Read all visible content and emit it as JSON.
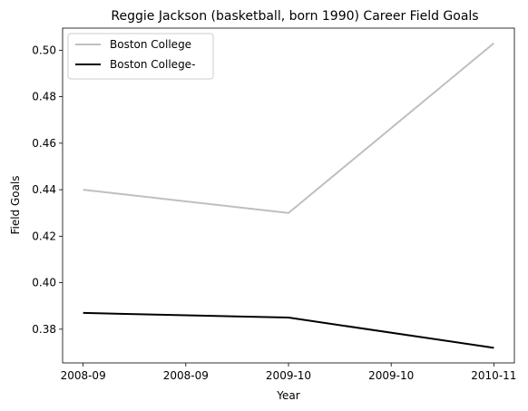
{
  "chart_data": {
    "type": "line",
    "title": "Reggie Jackson (basketball, born 1990) Career Field Goals",
    "xlabel": "Year",
    "ylabel": "Field Goals",
    "x": [
      0,
      1,
      2
    ],
    "xticks": [
      {
        "value": 0,
        "label": "2008-09"
      },
      {
        "value": 0.5,
        "label": "2008-09"
      },
      {
        "value": 1,
        "label": "2009-10"
      },
      {
        "value": 1.5,
        "label": "2009-10"
      },
      {
        "value": 2,
        "label": "2010-11"
      },
      {
        "value": 2.5,
        "label": "2010-11"
      }
    ],
    "xlim": [
      -0.1,
      2.1
    ],
    "ylim": [
      0.3655,
      0.5095
    ],
    "yticks": [
      0.38,
      0.4,
      0.42,
      0.44,
      0.46,
      0.48,
      0.5
    ],
    "ytick_labels": [
      "0.38",
      "0.40",
      "0.42",
      "0.44",
      "0.46",
      "0.48",
      "0.50"
    ],
    "grid": false,
    "legend_position": "top-left",
    "series": [
      {
        "name": "Boston College",
        "values": [
          0.44,
          0.43,
          0.503
        ],
        "color": "#bfbfbf"
      },
      {
        "name": "Boston College-",
        "values": [
          0.387,
          0.385,
          0.372
        ],
        "color": "#000000"
      }
    ]
  }
}
